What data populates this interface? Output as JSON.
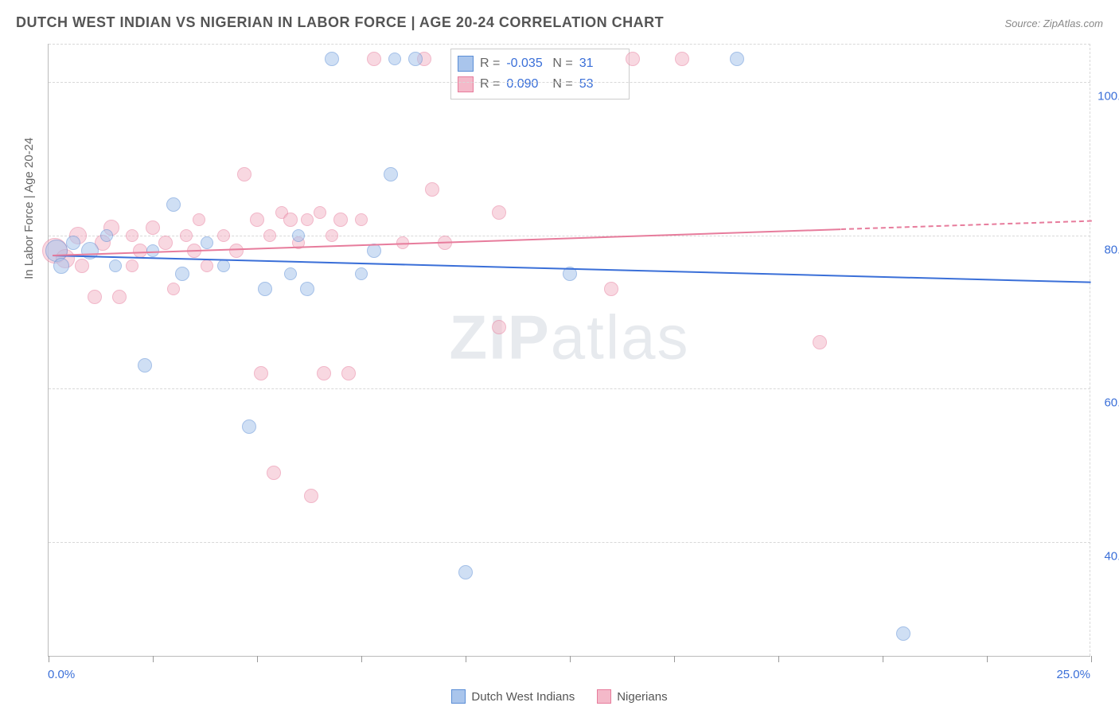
{
  "title": "DUTCH WEST INDIAN VS NIGERIAN IN LABOR FORCE | AGE 20-24 CORRELATION CHART",
  "source": "Source: ZipAtlas.com",
  "y_axis_title": "In Labor Force | Age 20-24",
  "watermark_bold": "ZIP",
  "watermark_light": "atlas",
  "chart": {
    "type": "scatter",
    "background_color": "#ffffff",
    "grid_color": "#d8d8d8",
    "axis_color": "#bbbbbb",
    "xlim": [
      0,
      25
    ],
    "ylim": [
      25,
      105
    ],
    "xtick_positions": [
      0,
      2.5,
      5,
      7.5,
      10,
      12.5,
      15,
      17.5,
      20,
      22.5,
      25
    ],
    "xlabel_min": "0.0%",
    "xlabel_max": "25.0%",
    "ytick_values": [
      40,
      60,
      80,
      100
    ],
    "ytick_labels": [
      "40.0%",
      "60.0%",
      "80.0%",
      "100.0%"
    ],
    "label_color": "#3a6fd8",
    "label_fontsize": 15,
    "title_fontsize": 18,
    "title_color": "#555555",
    "marker_radius": 9,
    "marker_opacity": 0.55,
    "series": [
      {
        "name": "Dutch West Indians",
        "fill_color": "#a9c5ec",
        "stroke_color": "#5b8ed6",
        "R": "-0.035",
        "N": "31",
        "trend": {
          "x1": 0.1,
          "y1": 77.5,
          "x2": 25,
          "y2": 74.0,
          "solid_until_x": 25,
          "line_color": "#3a6fd8",
          "line_width": 2
        },
        "points": [
          {
            "x": 0.2,
            "y": 78,
            "r": 14
          },
          {
            "x": 0.3,
            "y": 76,
            "r": 10
          },
          {
            "x": 0.6,
            "y": 79,
            "r": 9
          },
          {
            "x": 1.0,
            "y": 78,
            "r": 11
          },
          {
            "x": 1.4,
            "y": 80,
            "r": 8
          },
          {
            "x": 1.6,
            "y": 76,
            "r": 8
          },
          {
            "x": 2.3,
            "y": 63,
            "r": 9
          },
          {
            "x": 2.5,
            "y": 78,
            "r": 8
          },
          {
            "x": 3.0,
            "y": 84,
            "r": 9
          },
          {
            "x": 3.2,
            "y": 75,
            "r": 9
          },
          {
            "x": 3.8,
            "y": 79,
            "r": 8
          },
          {
            "x": 4.2,
            "y": 76,
            "r": 8
          },
          {
            "x": 4.8,
            "y": 55,
            "r": 9
          },
          {
            "x": 5.2,
            "y": 73,
            "r": 9
          },
          {
            "x": 5.8,
            "y": 75,
            "r": 8
          },
          {
            "x": 6.0,
            "y": 80,
            "r": 8
          },
          {
            "x": 6.2,
            "y": 73,
            "r": 9
          },
          {
            "x": 6.8,
            "y": 103,
            "r": 9
          },
          {
            "x": 7.5,
            "y": 75,
            "r": 8
          },
          {
            "x": 7.8,
            "y": 78,
            "r": 9
          },
          {
            "x": 8.2,
            "y": 88,
            "r": 9
          },
          {
            "x": 8.3,
            "y": 103,
            "r": 8
          },
          {
            "x": 8.8,
            "y": 103,
            "r": 9
          },
          {
            "x": 10.0,
            "y": 36,
            "r": 9
          },
          {
            "x": 12.5,
            "y": 75,
            "r": 9
          },
          {
            "x": 16.5,
            "y": 103,
            "r": 9
          },
          {
            "x": 20.5,
            "y": 28,
            "r": 9
          }
        ]
      },
      {
        "name": "Nigerians",
        "fill_color": "#f4b9c9",
        "stroke_color": "#e77c9c",
        "R": "0.090",
        "N": "53",
        "trend": {
          "x1": 0.1,
          "y1": 77.5,
          "x2": 25,
          "y2": 82.0,
          "solid_until_x": 19,
          "line_color": "#e77c9c",
          "line_width": 2
        },
        "points": [
          {
            "x": 0.15,
            "y": 78,
            "r": 16
          },
          {
            "x": 0.4,
            "y": 77,
            "r": 12
          },
          {
            "x": 0.7,
            "y": 80,
            "r": 11
          },
          {
            "x": 0.8,
            "y": 76,
            "r": 9
          },
          {
            "x": 1.1,
            "y": 72,
            "r": 9
          },
          {
            "x": 1.3,
            "y": 79,
            "r": 10
          },
          {
            "x": 1.5,
            "y": 81,
            "r": 10
          },
          {
            "x": 1.7,
            "y": 72,
            "r": 9
          },
          {
            "x": 2.0,
            "y": 76,
            "r": 8
          },
          {
            "x": 2.0,
            "y": 80,
            "r": 8
          },
          {
            "x": 2.2,
            "y": 78,
            "r": 9
          },
          {
            "x": 2.5,
            "y": 81,
            "r": 9
          },
          {
            "x": 2.8,
            "y": 79,
            "r": 9
          },
          {
            "x": 3.0,
            "y": 73,
            "r": 8
          },
          {
            "x": 3.3,
            "y": 80,
            "r": 8
          },
          {
            "x": 3.5,
            "y": 78,
            "r": 9
          },
          {
            "x": 3.6,
            "y": 82,
            "r": 8
          },
          {
            "x": 3.8,
            "y": 76,
            "r": 8
          },
          {
            "x": 4.2,
            "y": 80,
            "r": 8
          },
          {
            "x": 4.5,
            "y": 78,
            "r": 9
          },
          {
            "x": 4.7,
            "y": 88,
            "r": 9
          },
          {
            "x": 5.0,
            "y": 82,
            "r": 9
          },
          {
            "x": 5.1,
            "y": 62,
            "r": 9
          },
          {
            "x": 5.3,
            "y": 80,
            "r": 8
          },
          {
            "x": 5.4,
            "y": 49,
            "r": 9
          },
          {
            "x": 5.6,
            "y": 83,
            "r": 8
          },
          {
            "x": 5.8,
            "y": 82,
            "r": 9
          },
          {
            "x": 6.0,
            "y": 79,
            "r": 8
          },
          {
            "x": 6.2,
            "y": 82,
            "r": 8
          },
          {
            "x": 6.3,
            "y": 46,
            "r": 9
          },
          {
            "x": 6.5,
            "y": 83,
            "r": 8
          },
          {
            "x": 6.6,
            "y": 62,
            "r": 9
          },
          {
            "x": 6.8,
            "y": 80,
            "r": 8
          },
          {
            "x": 7.0,
            "y": 82,
            "r": 9
          },
          {
            "x": 7.2,
            "y": 62,
            "r": 9
          },
          {
            "x": 7.5,
            "y": 82,
            "r": 8
          },
          {
            "x": 7.8,
            "y": 103,
            "r": 9
          },
          {
            "x": 8.5,
            "y": 79,
            "r": 8
          },
          {
            "x": 9.0,
            "y": 103,
            "r": 9
          },
          {
            "x": 9.2,
            "y": 86,
            "r": 9
          },
          {
            "x": 9.5,
            "y": 79,
            "r": 9
          },
          {
            "x": 10.8,
            "y": 83,
            "r": 9
          },
          {
            "x": 10.8,
            "y": 68,
            "r": 9
          },
          {
            "x": 13.5,
            "y": 73,
            "r": 9
          },
          {
            "x": 14.0,
            "y": 103,
            "r": 9
          },
          {
            "x": 15.2,
            "y": 103,
            "r": 9
          },
          {
            "x": 18.5,
            "y": 66,
            "r": 9
          }
        ]
      }
    ]
  },
  "stats_labels": {
    "R": "R =",
    "N": "N ="
  },
  "legend": {
    "series1_label": "Dutch West Indians",
    "series2_label": "Nigerians"
  }
}
